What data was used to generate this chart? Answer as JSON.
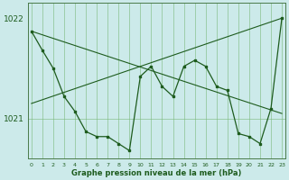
{
  "xlabel": "Graphe pression niveau de la mer (hPa)",
  "bg_color": "#cceaea",
  "line_color": "#1e5c1e",
  "grid_color": "#7ab87a",
  "axis_color": "#4a7a4a",
  "xlim_min": -0.3,
  "xlim_max": 23.3,
  "ylim_min": 1020.6,
  "ylim_max": 1022.15,
  "yticks": [
    1021,
    1022
  ],
  "xticks": [
    0,
    1,
    2,
    3,
    4,
    5,
    6,
    7,
    8,
    9,
    10,
    11,
    12,
    13,
    14,
    15,
    16,
    17,
    18,
    19,
    20,
    21,
    22,
    23
  ],
  "desc_line": [
    [
      0,
      1021.87
    ],
    [
      23,
      1021.05
    ]
  ],
  "asc_line": [
    [
      0,
      1021.15
    ],
    [
      23,
      1022.0
    ]
  ],
  "main_x": [
    0,
    1,
    2,
    3,
    4,
    5,
    6,
    7,
    8,
    9,
    10,
    11,
    12,
    13,
    14,
    15,
    16,
    17,
    18,
    19,
    20,
    21,
    22,
    23
  ],
  "main_y": [
    1021.87,
    1021.68,
    1021.5,
    1021.22,
    1021.07,
    1020.87,
    1020.82,
    1020.82,
    1020.75,
    1020.68,
    1021.42,
    1021.52,
    1021.32,
    1021.22,
    1021.52,
    1021.58,
    1021.52,
    1021.32,
    1021.28,
    1020.85,
    1020.82,
    1020.75,
    1021.1,
    1022.0
  ]
}
